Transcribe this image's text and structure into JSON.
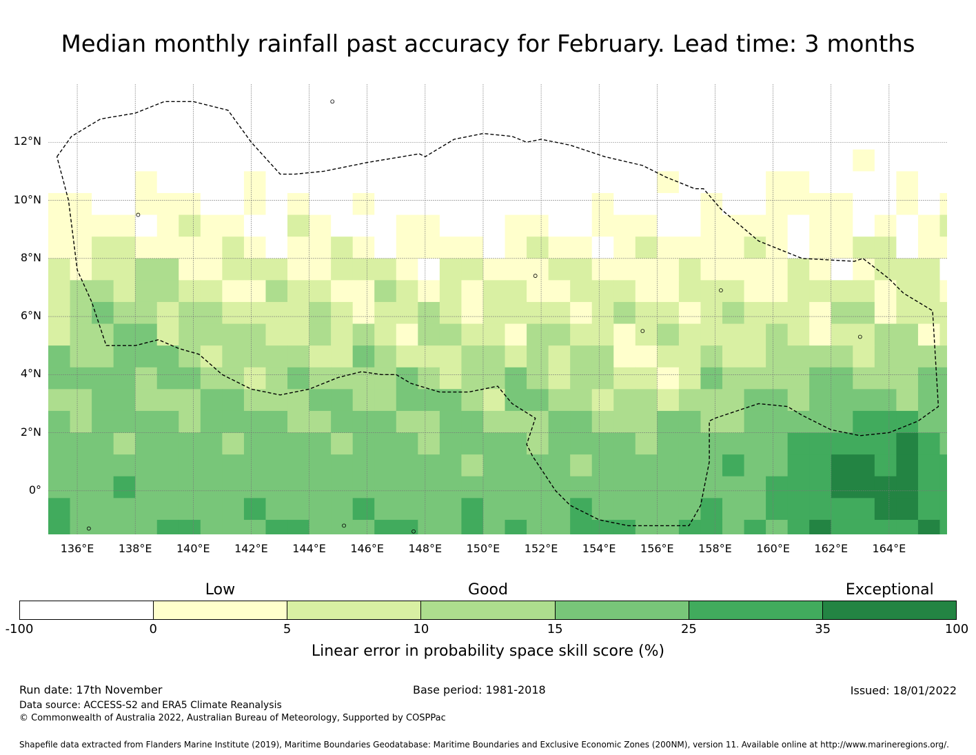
{
  "title": "Median monthly rainfall past accuracy for February. Lead time: 3 months",
  "map": {
    "lon_range": [
      135,
      166
    ],
    "lat_range": [
      -1.5,
      14
    ],
    "lat_ticks": [
      {
        "value": 12,
        "label": "12°N"
      },
      {
        "value": 10,
        "label": "10°N"
      },
      {
        "value": 8,
        "label": "8°N"
      },
      {
        "value": 6,
        "label": "6°N"
      },
      {
        "value": 4,
        "label": "4°N"
      },
      {
        "value": 2,
        "label": "2°N"
      },
      {
        "value": 0,
        "label": "0°"
      }
    ],
    "lon_ticks": [
      {
        "value": 136,
        "label": "136°E"
      },
      {
        "value": 138,
        "label": "138°E"
      },
      {
        "value": 140,
        "label": "140°E"
      },
      {
        "value": 142,
        "label": "142°E"
      },
      {
        "value": 144,
        "label": "144°E"
      },
      {
        "value": 146,
        "label": "146°E"
      },
      {
        "value": 148,
        "label": "148°E"
      },
      {
        "value": 150,
        "label": "150°E"
      },
      {
        "value": 152,
        "label": "152°E"
      },
      {
        "value": 154,
        "label": "154°E"
      },
      {
        "value": 156,
        "label": "156°E"
      },
      {
        "value": 158,
        "label": "158°E"
      },
      {
        "value": 160,
        "label": "160°E"
      },
      {
        "value": 162,
        "label": "162°E"
      },
      {
        "value": 164,
        "label": "164°E"
      }
    ],
    "eez_boundary": [
      [
        135.3,
        11.5
      ],
      [
        135.8,
        12.2
      ],
      [
        136.8,
        12.8
      ],
      [
        138.0,
        13.0
      ],
      [
        139.0,
        13.4
      ],
      [
        140.0,
        13.4
      ],
      [
        141.2,
        13.1
      ],
      [
        142.0,
        12.0
      ],
      [
        143.0,
        10.9
      ],
      [
        143.5,
        10.9
      ],
      [
        144.5,
        11.0
      ],
      [
        146.0,
        11.3
      ],
      [
        147.8,
        11.6
      ],
      [
        148.0,
        11.5
      ],
      [
        149.0,
        12.1
      ],
      [
        150.0,
        12.3
      ],
      [
        151.0,
        12.2
      ],
      [
        151.5,
        12.0
      ],
      [
        152.0,
        12.1
      ],
      [
        153.0,
        11.9
      ],
      [
        154.2,
        11.5
      ],
      [
        155.5,
        11.2
      ],
      [
        156.3,
        10.8
      ],
      [
        157.3,
        10.4
      ],
      [
        157.6,
        10.4
      ],
      [
        158.2,
        9.7
      ],
      [
        159.5,
        8.6
      ],
      [
        161.0,
        8.0
      ],
      [
        162.8,
        7.9
      ],
      [
        163.1,
        8.0
      ],
      [
        164.0,
        7.3
      ],
      [
        164.5,
        6.8
      ],
      [
        165.5,
        6.2
      ],
      [
        165.7,
        2.9
      ],
      [
        165.0,
        2.4
      ],
      [
        164.0,
        2.0
      ],
      [
        163.0,
        1.9
      ],
      [
        162.0,
        2.1
      ],
      [
        161.0,
        2.6
      ],
      [
        160.5,
        2.9
      ],
      [
        159.5,
        3.0
      ],
      [
        158.0,
        2.5
      ],
      [
        157.8,
        2.4
      ],
      [
        157.8,
        1.0
      ],
      [
        157.5,
        -0.5
      ],
      [
        157.1,
        -1.2
      ],
      [
        155.0,
        -1.2
      ],
      [
        154.0,
        -1.0
      ],
      [
        153.0,
        -0.5
      ],
      [
        152.5,
        0.0
      ],
      [
        151.7,
        1.2
      ],
      [
        151.5,
        1.6
      ],
      [
        151.8,
        2.5
      ],
      [
        151.0,
        3.0
      ],
      [
        150.5,
        3.6
      ],
      [
        149.5,
        3.4
      ],
      [
        148.5,
        3.4
      ],
      [
        147.5,
        3.7
      ],
      [
        147.0,
        4.0
      ],
      [
        146.5,
        4.0
      ],
      [
        145.8,
        4.1
      ],
      [
        145.0,
        3.9
      ],
      [
        144.0,
        3.5
      ],
      [
        143.0,
        3.3
      ],
      [
        142.0,
        3.5
      ],
      [
        141.0,
        4.0
      ],
      [
        140.2,
        4.7
      ],
      [
        139.5,
        4.9
      ],
      [
        138.8,
        5.2
      ],
      [
        138.0,
        5.0
      ],
      [
        137.0,
        5.0
      ],
      [
        136.5,
        6.5
      ],
      [
        136.0,
        7.6
      ],
      [
        135.7,
        10.0
      ],
      [
        135.3,
        11.5
      ]
    ]
  },
  "colorbar": {
    "categories": [
      {
        "label": "Low",
        "value": 2.5
      },
      {
        "label": "Good",
        "value": 12.5
      },
      {
        "label": "Exceptional",
        "value": 67.5
      }
    ],
    "ticks": [
      "-100",
      "0",
      "5",
      "10",
      "15",
      "25",
      "35",
      "100"
    ],
    "colors": [
      "#ffffff",
      "#ffffcc",
      "#d9f0a3",
      "#addd8e",
      "#78c679",
      "#41ab5d",
      "#238443"
    ],
    "axis_label": "Linear error in probability space skill score (%)"
  },
  "footer": {
    "run_date": "Run date: 17th November",
    "base_period": "Base period: 1981-2018",
    "issued": "Issued: 18/01/2022",
    "data_source": "Data source: ACCESS-S2 and ERA5 Climate Reanalysis",
    "copyright": "© Commonwealth of Australia 2022, Australian Bureau of Meteorology, Supported by COSPPac",
    "shapefile": "Shapefile data extracted from Flanders Marine Institute (2019), Maritime Boundaries Geodatabase: Maritime Boundaries and Exclusive Economic Zones (200NM), version 11. Available online at http://www.marineregions.org/."
  }
}
